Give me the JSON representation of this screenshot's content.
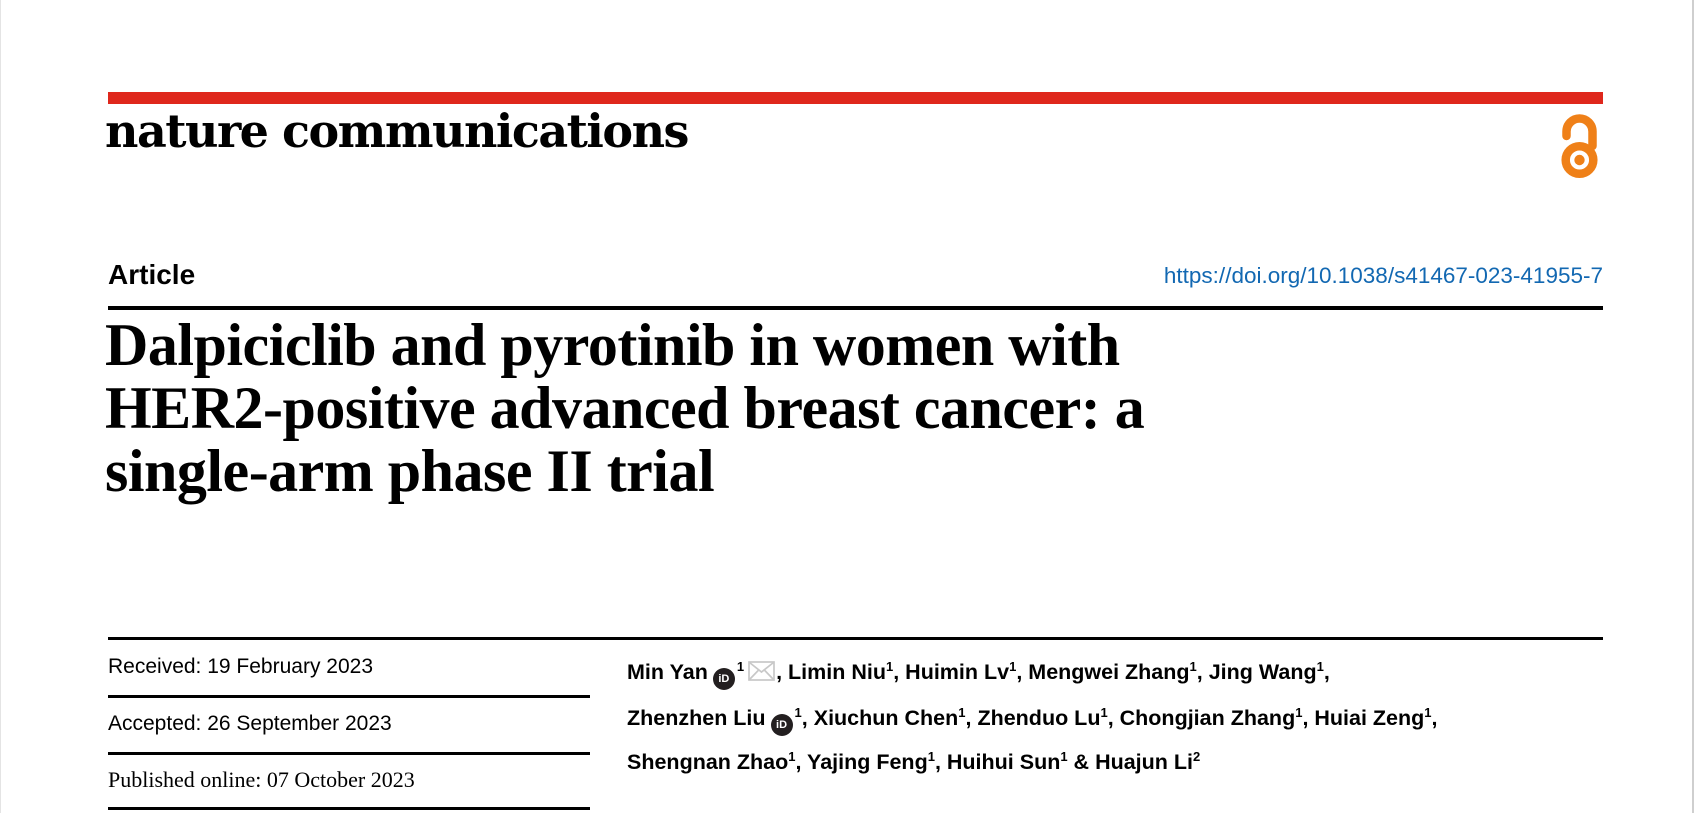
{
  "header": {
    "journal_wordmark": "nature communications",
    "brand_red": "#df271c",
    "open_access_icon": "open-access-padlock-icon",
    "open_access_orange": "#ef8018"
  },
  "article": {
    "type_label": "Article",
    "doi_link": "https://doi.org/10.1038/s41467-023-41955-7",
    "doi_color": "#1268b2",
    "title_lines": [
      "Dalpiciclib and pyrotinib in women with",
      "HER2-positive advanced breast cancer: a",
      "single-arm phase II trial"
    ]
  },
  "history": {
    "received": "Received: 19 February 2023",
    "accepted": "Accepted: 26 September 2023",
    "published_online": "Published online: 07 October 2023"
  },
  "authors": {
    "orcid_icon": "orcid-id-icon",
    "orcid_glyph": "iD",
    "email_icon": "envelope-icon",
    "lines": [
      [
        {
          "name": "Min Yan",
          "orcid": true,
          "sup": "1",
          "email": true,
          "sep": ", "
        },
        {
          "name": "Limin Niu",
          "sup": "1",
          "sep": ", "
        },
        {
          "name": "Huimin Lv",
          "sup": "1",
          "sep": ", "
        },
        {
          "name": "Mengwei Zhang",
          "sup": "1",
          "sep": ", "
        },
        {
          "name": "Jing Wang",
          "sup": "1",
          "sep": ","
        }
      ],
      [
        {
          "name": "Zhenzhen Liu",
          "orcid": true,
          "sup": "1",
          "sep": ", "
        },
        {
          "name": "Xiuchun Chen",
          "sup": "1",
          "sep": ", "
        },
        {
          "name": "Zhenduo Lu",
          "sup": "1",
          "sep": ", "
        },
        {
          "name": "Chongjian Zhang",
          "sup": "1",
          "sep": ", "
        },
        {
          "name": "Huiai Zeng",
          "sup": "1",
          "sep": ","
        }
      ],
      [
        {
          "name": "Shengnan Zhao",
          "sup": "1",
          "sep": ", "
        },
        {
          "name": "Yajing Feng",
          "sup": "1",
          "sep": ", "
        },
        {
          "name": "Huihui Sun",
          "sup": "1",
          "sep": " & "
        },
        {
          "name": "Huajun Li",
          "sup": "2",
          "sep": ""
        }
      ]
    ]
  }
}
